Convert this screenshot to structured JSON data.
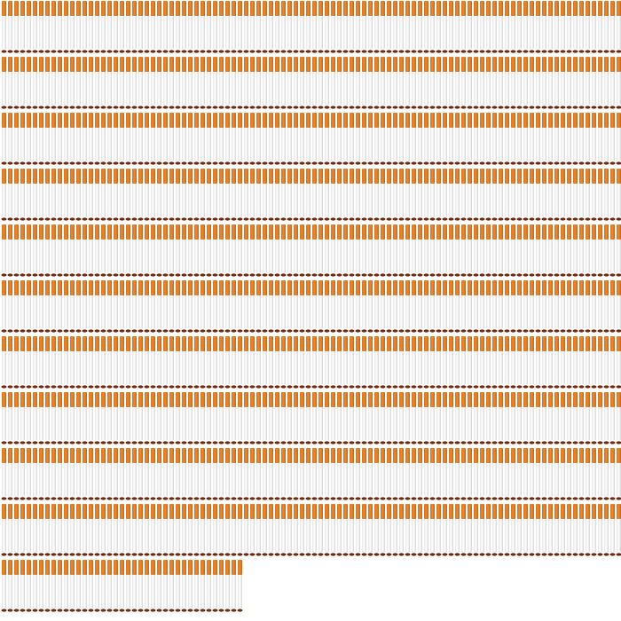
{
  "icons": {
    "count": 1039
  }
}
